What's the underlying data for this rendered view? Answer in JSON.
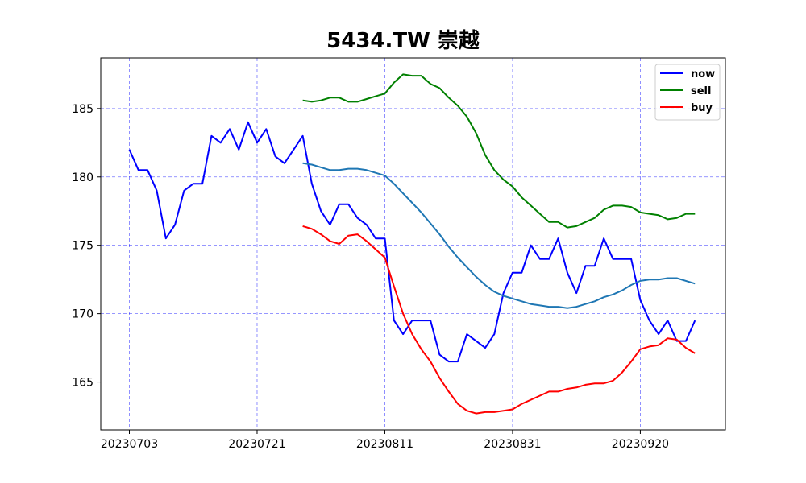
{
  "chart_data": {
    "type": "line",
    "title": "5434.TW 崇越",
    "xlabel": "",
    "ylabel": "",
    "x_tick_labels": [
      "20230703",
      "20230721",
      "20230811",
      "20230831",
      "20230920"
    ],
    "ylim": [
      161.5,
      188.7
    ],
    "y_ticks": [
      165,
      170,
      175,
      180,
      185
    ],
    "grid": true,
    "legend_position": "top-right",
    "series": [
      {
        "name": "now",
        "color": "#0000ff",
        "start_index": 0,
        "values": [
          182.0,
          180.5,
          180.5,
          179.0,
          175.5,
          176.5,
          179.0,
          179.5,
          179.5,
          183.0,
          182.5,
          183.5,
          182.0,
          184.0,
          182.5,
          183.5,
          181.5,
          181.0,
          182.0,
          183.0,
          179.5,
          177.5,
          176.5,
          178.0,
          178.0,
          177.0,
          176.5,
          175.5,
          175.5,
          169.5,
          168.5,
          169.5,
          169.5,
          169.5,
          167.0,
          166.5,
          166.5,
          168.5,
          168.0,
          167.5,
          168.5,
          171.5,
          173.0,
          173.0,
          175.0,
          174.0,
          174.0,
          175.5,
          173.0,
          171.5,
          173.5,
          173.5,
          175.5,
          174.0,
          174.0,
          174.0,
          171.0,
          169.5,
          168.5,
          169.5,
          168.0,
          168.0,
          169.5
        ]
      },
      {
        "name": "sell",
        "color": "#008000",
        "start_index": 19,
        "values": [
          185.6,
          185.5,
          185.6,
          185.8,
          185.8,
          185.5,
          185.5,
          185.7,
          185.9,
          186.1,
          186.9,
          187.5,
          187.4,
          187.4,
          186.8,
          186.5,
          185.8,
          185.2,
          184.4,
          183.2,
          181.6,
          180.5,
          179.8,
          179.3,
          178.5,
          177.9,
          177.3,
          176.7,
          176.7,
          176.3,
          176.4,
          176.7,
          177.0,
          177.6,
          177.9,
          177.9,
          177.8,
          177.4,
          177.3,
          177.2,
          176.9,
          177.0,
          177.3,
          177.3
        ]
      },
      {
        "name": "",
        "color": "#1f77b4",
        "start_index": 19,
        "values": [
          181.0,
          180.9,
          180.7,
          180.5,
          180.5,
          180.6,
          180.6,
          180.5,
          180.3,
          180.1,
          179.5,
          178.8,
          178.1,
          177.4,
          176.6,
          175.8,
          174.9,
          174.1,
          173.4,
          172.7,
          172.1,
          171.6,
          171.3,
          171.1,
          170.9,
          170.7,
          170.6,
          170.5,
          170.5,
          170.4,
          170.5,
          170.7,
          170.9,
          171.2,
          171.4,
          171.7,
          172.1,
          172.4,
          172.5,
          172.5,
          172.6,
          172.6,
          172.4,
          172.2
        ]
      },
      {
        "name": "buy",
        "color": "#ff0000",
        "start_index": 19,
        "values": [
          176.4,
          176.2,
          175.8,
          175.3,
          175.1,
          175.7,
          175.8,
          175.3,
          174.7,
          174.1,
          172.0,
          170.0,
          168.5,
          167.4,
          166.5,
          165.3,
          164.3,
          163.4,
          162.9,
          162.7,
          162.8,
          162.8,
          162.9,
          163.0,
          163.4,
          163.7,
          164.0,
          164.3,
          164.3,
          164.5,
          164.6,
          164.8,
          164.9,
          164.9,
          165.1,
          165.7,
          166.5,
          167.4,
          167.6,
          167.7,
          168.2,
          168.1,
          167.5,
          167.1
        ]
      }
    ]
  }
}
